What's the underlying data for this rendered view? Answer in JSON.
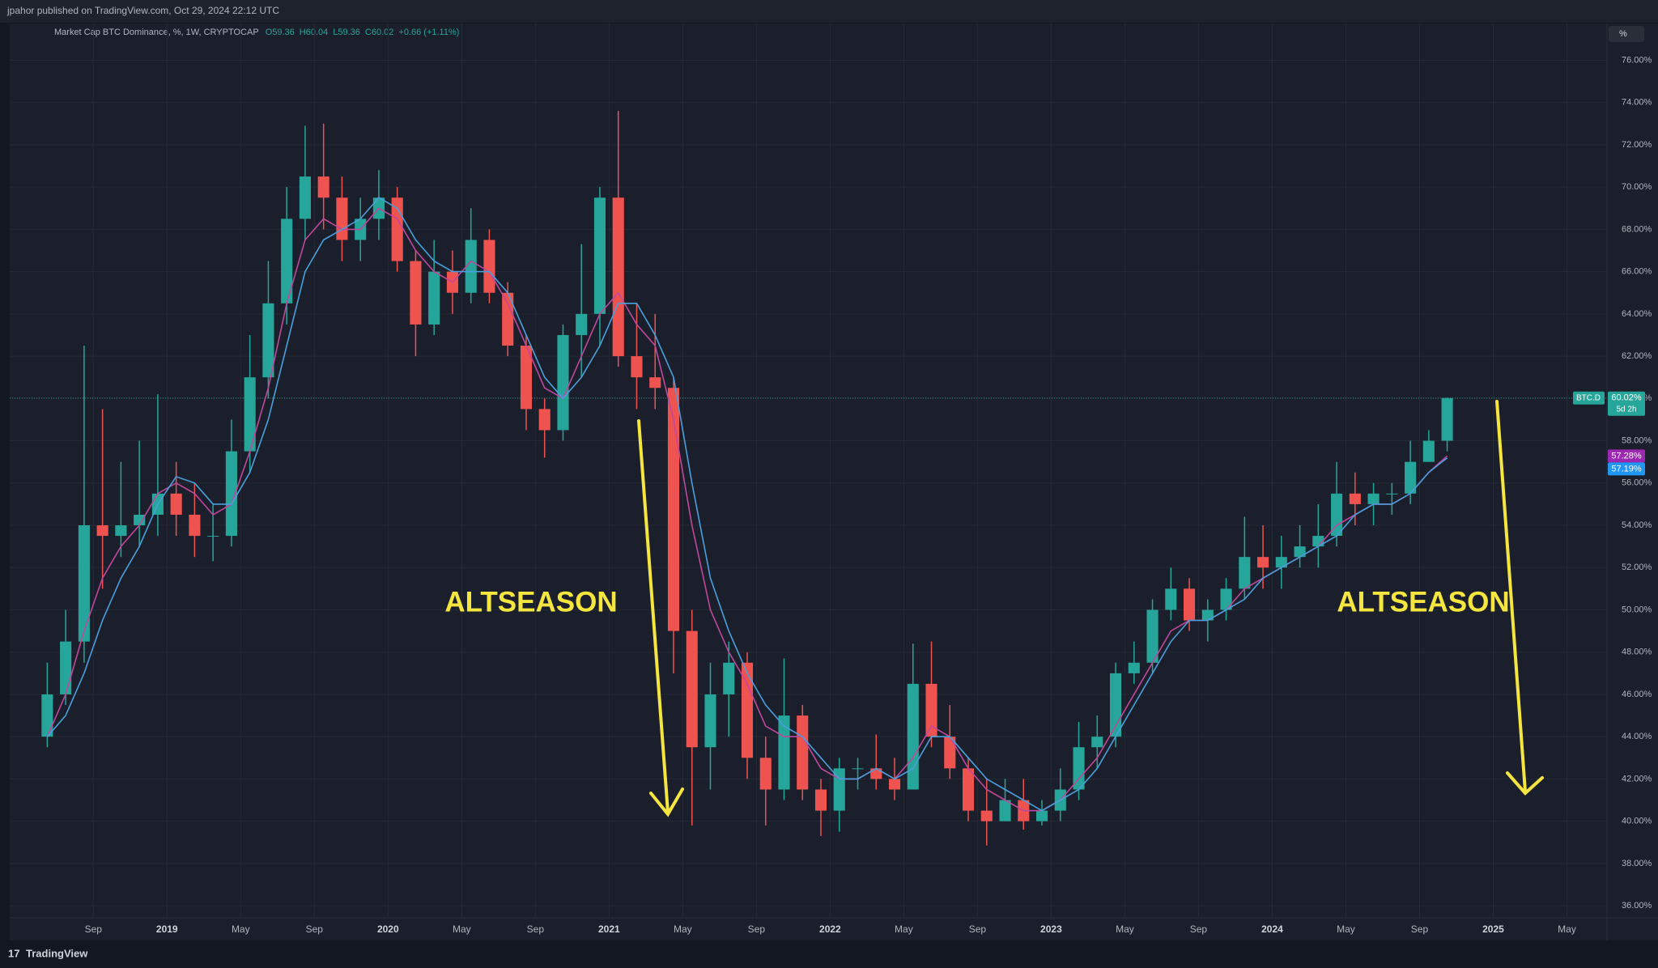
{
  "header": {
    "published": "jpahor published on TradingView.com, Oct 29, 2024 22:12 UTC",
    "footer_logo": "TradingView",
    "scale_button": "%"
  },
  "chart_data": {
    "type": "candlestick",
    "title": "Market Cap BTC Dominance, %, 1W, CRYPTOCAP",
    "ohlc_legend": [
      "O59.36",
      "H60.04",
      "L59.36",
      "C60.02",
      "+0.66 (+1.11%)"
    ],
    "x": [
      "2018-06",
      "2018-07",
      "2018-08",
      "2018-09",
      "2018-10",
      "2018-11",
      "2018-12",
      "2019-01",
      "2019-02",
      "2019-03",
      "2019-04",
      "2019-05",
      "2019-06",
      "2019-07",
      "2019-08",
      "2019-09",
      "2019-10",
      "2019-11",
      "2019-12",
      "2020-01",
      "2020-02",
      "2020-03",
      "2020-04",
      "2020-05",
      "2020-06",
      "2020-07",
      "2020-08",
      "2020-09",
      "2020-10",
      "2020-11",
      "2020-12",
      "2021-01",
      "2021-02",
      "2021-03",
      "2021-04",
      "2021-05",
      "2021-06",
      "2021-07",
      "2021-08",
      "2021-09",
      "2021-10",
      "2021-11",
      "2021-12",
      "2022-01",
      "2022-02",
      "2022-03",
      "2022-04",
      "2022-05",
      "2022-06",
      "2022-07",
      "2022-08",
      "2022-09",
      "2022-10",
      "2022-11",
      "2022-12",
      "2023-01",
      "2023-02",
      "2023-03",
      "2023-04",
      "2023-05",
      "2023-06",
      "2023-07",
      "2023-08",
      "2023-09",
      "2023-10",
      "2023-11",
      "2023-12",
      "2024-01",
      "2024-02",
      "2024-03",
      "2024-04",
      "2024-05",
      "2024-06",
      "2024-07",
      "2024-08",
      "2024-09",
      "2024-10"
    ],
    "open": [
      44,
      46,
      48.5,
      54,
      53.5,
      54,
      54.5,
      55.5,
      54.5,
      53.5,
      53.5,
      57.5,
      61,
      64.5,
      68.5,
      70.5,
      69.5,
      67.5,
      68.5,
      69.5,
      66.5,
      63.5,
      66,
      65,
      67.5,
      65,
      62.5,
      59.5,
      58.5,
      63,
      64,
      69.5,
      62,
      61,
      60.5,
      49,
      43.5,
      46,
      47.5,
      43,
      41.5,
      45,
      41.5,
      40.5,
      42.5,
      42.5,
      42,
      41.5,
      46.5,
      44,
      42.5,
      40.5,
      40,
      41,
      40,
      40.5,
      41.5,
      43.5,
      44,
      47,
      47.5,
      50,
      51,
      49.5,
      50,
      51,
      52.5,
      52,
      52.5,
      53,
      53.5,
      55.5,
      55,
      55.5,
      55.5,
      57,
      58
    ],
    "high": [
      47.5,
      50,
      62.5,
      59.5,
      57,
      58,
      60.2,
      57,
      56,
      55,
      59,
      63,
      66.5,
      70,
      72.9,
      73,
      70.5,
      69.5,
      70.8,
      70,
      67,
      67.5,
      67,
      69,
      68,
      65.5,
      63,
      60,
      63.5,
      67.3,
      70,
      73.6,
      64.5,
      64,
      61,
      50,
      47.5,
      48.5,
      48,
      44,
      47.7,
      45.5,
      42,
      43,
      43,
      44.1,
      43,
      48.4,
      48.5,
      45.5,
      43,
      42,
      42,
      42,
      41,
      42.5,
      44.7,
      45,
      47.5,
      48.5,
      50.5,
      52,
      51.5,
      50.5,
      51.5,
      54.4,
      54,
      53.5,
      54,
      55,
      57,
      56.5,
      56,
      56,
      58,
      58.5,
      60.04
    ],
    "low": [
      43.5,
      45.5,
      47.5,
      51,
      52.5,
      53,
      53.5,
      53.5,
      52.5,
      52.3,
      53,
      56.5,
      60,
      63.5,
      67.5,
      68,
      66.5,
      66.5,
      67.5,
      66,
      62,
      63,
      64,
      64.5,
      64.5,
      62,
      58.5,
      57.2,
      58,
      61,
      62.5,
      61.5,
      59.5,
      59.5,
      47,
      39.8,
      41.5,
      44,
      42,
      39.8,
      41,
      41,
      39.3,
      39.5,
      41.5,
      41.5,
      41,
      41.5,
      43.5,
      42,
      40,
      38.85,
      40,
      39.6,
      39.8,
      40,
      41,
      42.5,
      43.5,
      46.5,
      47,
      49.5,
      49,
      48.5,
      49.5,
      50.5,
      51,
      51,
      52,
      52,
      53,
      54,
      54,
      54.5,
      55,
      57,
      57.5
    ],
    "close": [
      46,
      48.5,
      54,
      53.5,
      54,
      54.5,
      55.5,
      54.5,
      53.5,
      53.5,
      57.5,
      61,
      64.5,
      68.5,
      70.5,
      69.5,
      67.5,
      68.5,
      69.5,
      66.5,
      63.5,
      66,
      65,
      67.5,
      65,
      62.5,
      59.5,
      58.5,
      63,
      64,
      69.5,
      62,
      61,
      60.5,
      49,
      43.5,
      46,
      47.5,
      43,
      41.5,
      45,
      41.5,
      40.5,
      42.5,
      42.5,
      42,
      41.5,
      46.5,
      44,
      42.5,
      40.5,
      40,
      41,
      40,
      40.5,
      41.5,
      43.5,
      44,
      47,
      47.5,
      50,
      51,
      49.5,
      50,
      51,
      52.5,
      52,
      52.5,
      53,
      53.5,
      55.5,
      55,
      55.5,
      55.5,
      57,
      58,
      60.02
    ],
    "up_color": "#26a69a",
    "down_color": "#ef5350",
    "moving_averages": [
      {
        "color": "#c0479c",
        "values": [
          44,
          46,
          49,
          51.5,
          53,
          54,
          55.5,
          56,
          55.5,
          54.5,
          55,
          57.5,
          60.5,
          64.5,
          67.5,
          68.5,
          68,
          68,
          69,
          68.5,
          67,
          66,
          65.5,
          66.5,
          66,
          64.5,
          62.5,
          60.5,
          60,
          62,
          64,
          65,
          63.5,
          62.5,
          59,
          54,
          50,
          48,
          46.5,
          44.5,
          44,
          44,
          42.5,
          42,
          42,
          42.5,
          42,
          43,
          44.5,
          44,
          42.5,
          41.5,
          41,
          40.5,
          40.5,
          41,
          42,
          43,
          44.5,
          46,
          47.5,
          49,
          49.5,
          49.5,
          50,
          51,
          51.5,
          52,
          52.5,
          53,
          54,
          54.5,
          55,
          55,
          55.5,
          56.5,
          57.28
        ]
      },
      {
        "color": "#4a9fdc",
        "values": [
          44,
          45,
          47,
          49.5,
          51.5,
          53,
          55,
          56.3,
          56,
          55,
          55,
          56.5,
          59,
          62.5,
          66,
          67.5,
          68,
          68.5,
          69.5,
          69,
          67.5,
          66.5,
          66,
          66,
          66,
          65,
          63,
          61,
          60,
          61,
          62.5,
          64.5,
          64.5,
          63,
          61,
          56,
          51.5,
          49,
          47,
          45.5,
          44.5,
          44,
          43,
          42,
          42,
          42.5,
          42,
          42.5,
          44,
          44,
          43,
          42,
          41.5,
          41,
          40.5,
          41,
          41.5,
          42.5,
          44,
          45.5,
          47,
          48.5,
          49.5,
          49.5,
          50,
          50.5,
          51.5,
          52,
          52.5,
          53,
          53.5,
          54.5,
          55,
          55,
          55.5,
          56.5,
          57.19
        ]
      }
    ],
    "xlim": [
      "2018-06",
      "2025-07"
    ],
    "xticks": [
      {
        "value": "2018-09",
        "label": "Sep"
      },
      {
        "value": "2019-01",
        "label": "2019"
      },
      {
        "value": "2019-05",
        "label": "May"
      },
      {
        "value": "2019-09",
        "label": "Sep"
      },
      {
        "value": "2020-01",
        "label": "2020"
      },
      {
        "value": "2020-05",
        "label": "May"
      },
      {
        "value": "2020-09",
        "label": "Sep"
      },
      {
        "value": "2021-01",
        "label": "2021"
      },
      {
        "value": "2021-05",
        "label": "May"
      },
      {
        "value": "2021-09",
        "label": "Sep"
      },
      {
        "value": "2022-01",
        "label": "2022"
      },
      {
        "value": "2022-05",
        "label": "May"
      },
      {
        "value": "2022-09",
        "label": "Sep"
      },
      {
        "value": "2023-01",
        "label": "2023"
      },
      {
        "value": "2023-05",
        "label": "May"
      },
      {
        "value": "2023-09",
        "label": "Sep"
      },
      {
        "value": "2024-01",
        "label": "2024"
      },
      {
        "value": "2024-05",
        "label": "May"
      },
      {
        "value": "2024-09",
        "label": "Sep"
      },
      {
        "value": "2025-01",
        "label": "2025"
      },
      {
        "value": "2025-05",
        "label": "May"
      }
    ],
    "ylim": [
      35.43,
      77.74
    ],
    "yticks": [
      {
        "value": 36,
        "label": "36.00%"
      },
      {
        "value": 38,
        "label": "38.00%"
      },
      {
        "value": 40,
        "label": "40.00%"
      },
      {
        "value": 42,
        "label": "42.00%"
      },
      {
        "value": 44,
        "label": "44.00%"
      },
      {
        "value": 46,
        "label": "46.00%"
      },
      {
        "value": 48,
        "label": "48.00%"
      },
      {
        "value": 50,
        "label": "50.00%"
      },
      {
        "value": 52,
        "label": "52.00%"
      },
      {
        "value": 54,
        "label": "54.00%"
      },
      {
        "value": 56,
        "label": "56.00%"
      },
      {
        "value": 58,
        "label": "58.00%"
      },
      {
        "value": 60,
        "label": "60.00%"
      },
      {
        "value": 62,
        "label": "62.00%"
      },
      {
        "value": 64,
        "label": "64.00%"
      },
      {
        "value": 66,
        "label": "66.00%"
      },
      {
        "value": 68,
        "label": "68.00%"
      },
      {
        "value": 70,
        "label": "70.00%"
      },
      {
        "value": 72,
        "label": "72.00%"
      },
      {
        "value": 74,
        "label": "74.00%"
      },
      {
        "value": 76,
        "label": "76.00%"
      }
    ],
    "grid": true,
    "price_tags": [
      {
        "value": 60.02,
        "label": "60.02%",
        "color": "#26a69a"
      },
      {
        "value": 57.28,
        "label": "57.28%",
        "color": "#9c27b0"
      },
      {
        "value": 57.19,
        "label": "57.19%",
        "color": "#2196f3"
      }
    ],
    "symbol": "BTC.D",
    "countdown": "5d 2h",
    "annotations": [
      "ALTSEASON",
      "ALTSEASON"
    ]
  }
}
